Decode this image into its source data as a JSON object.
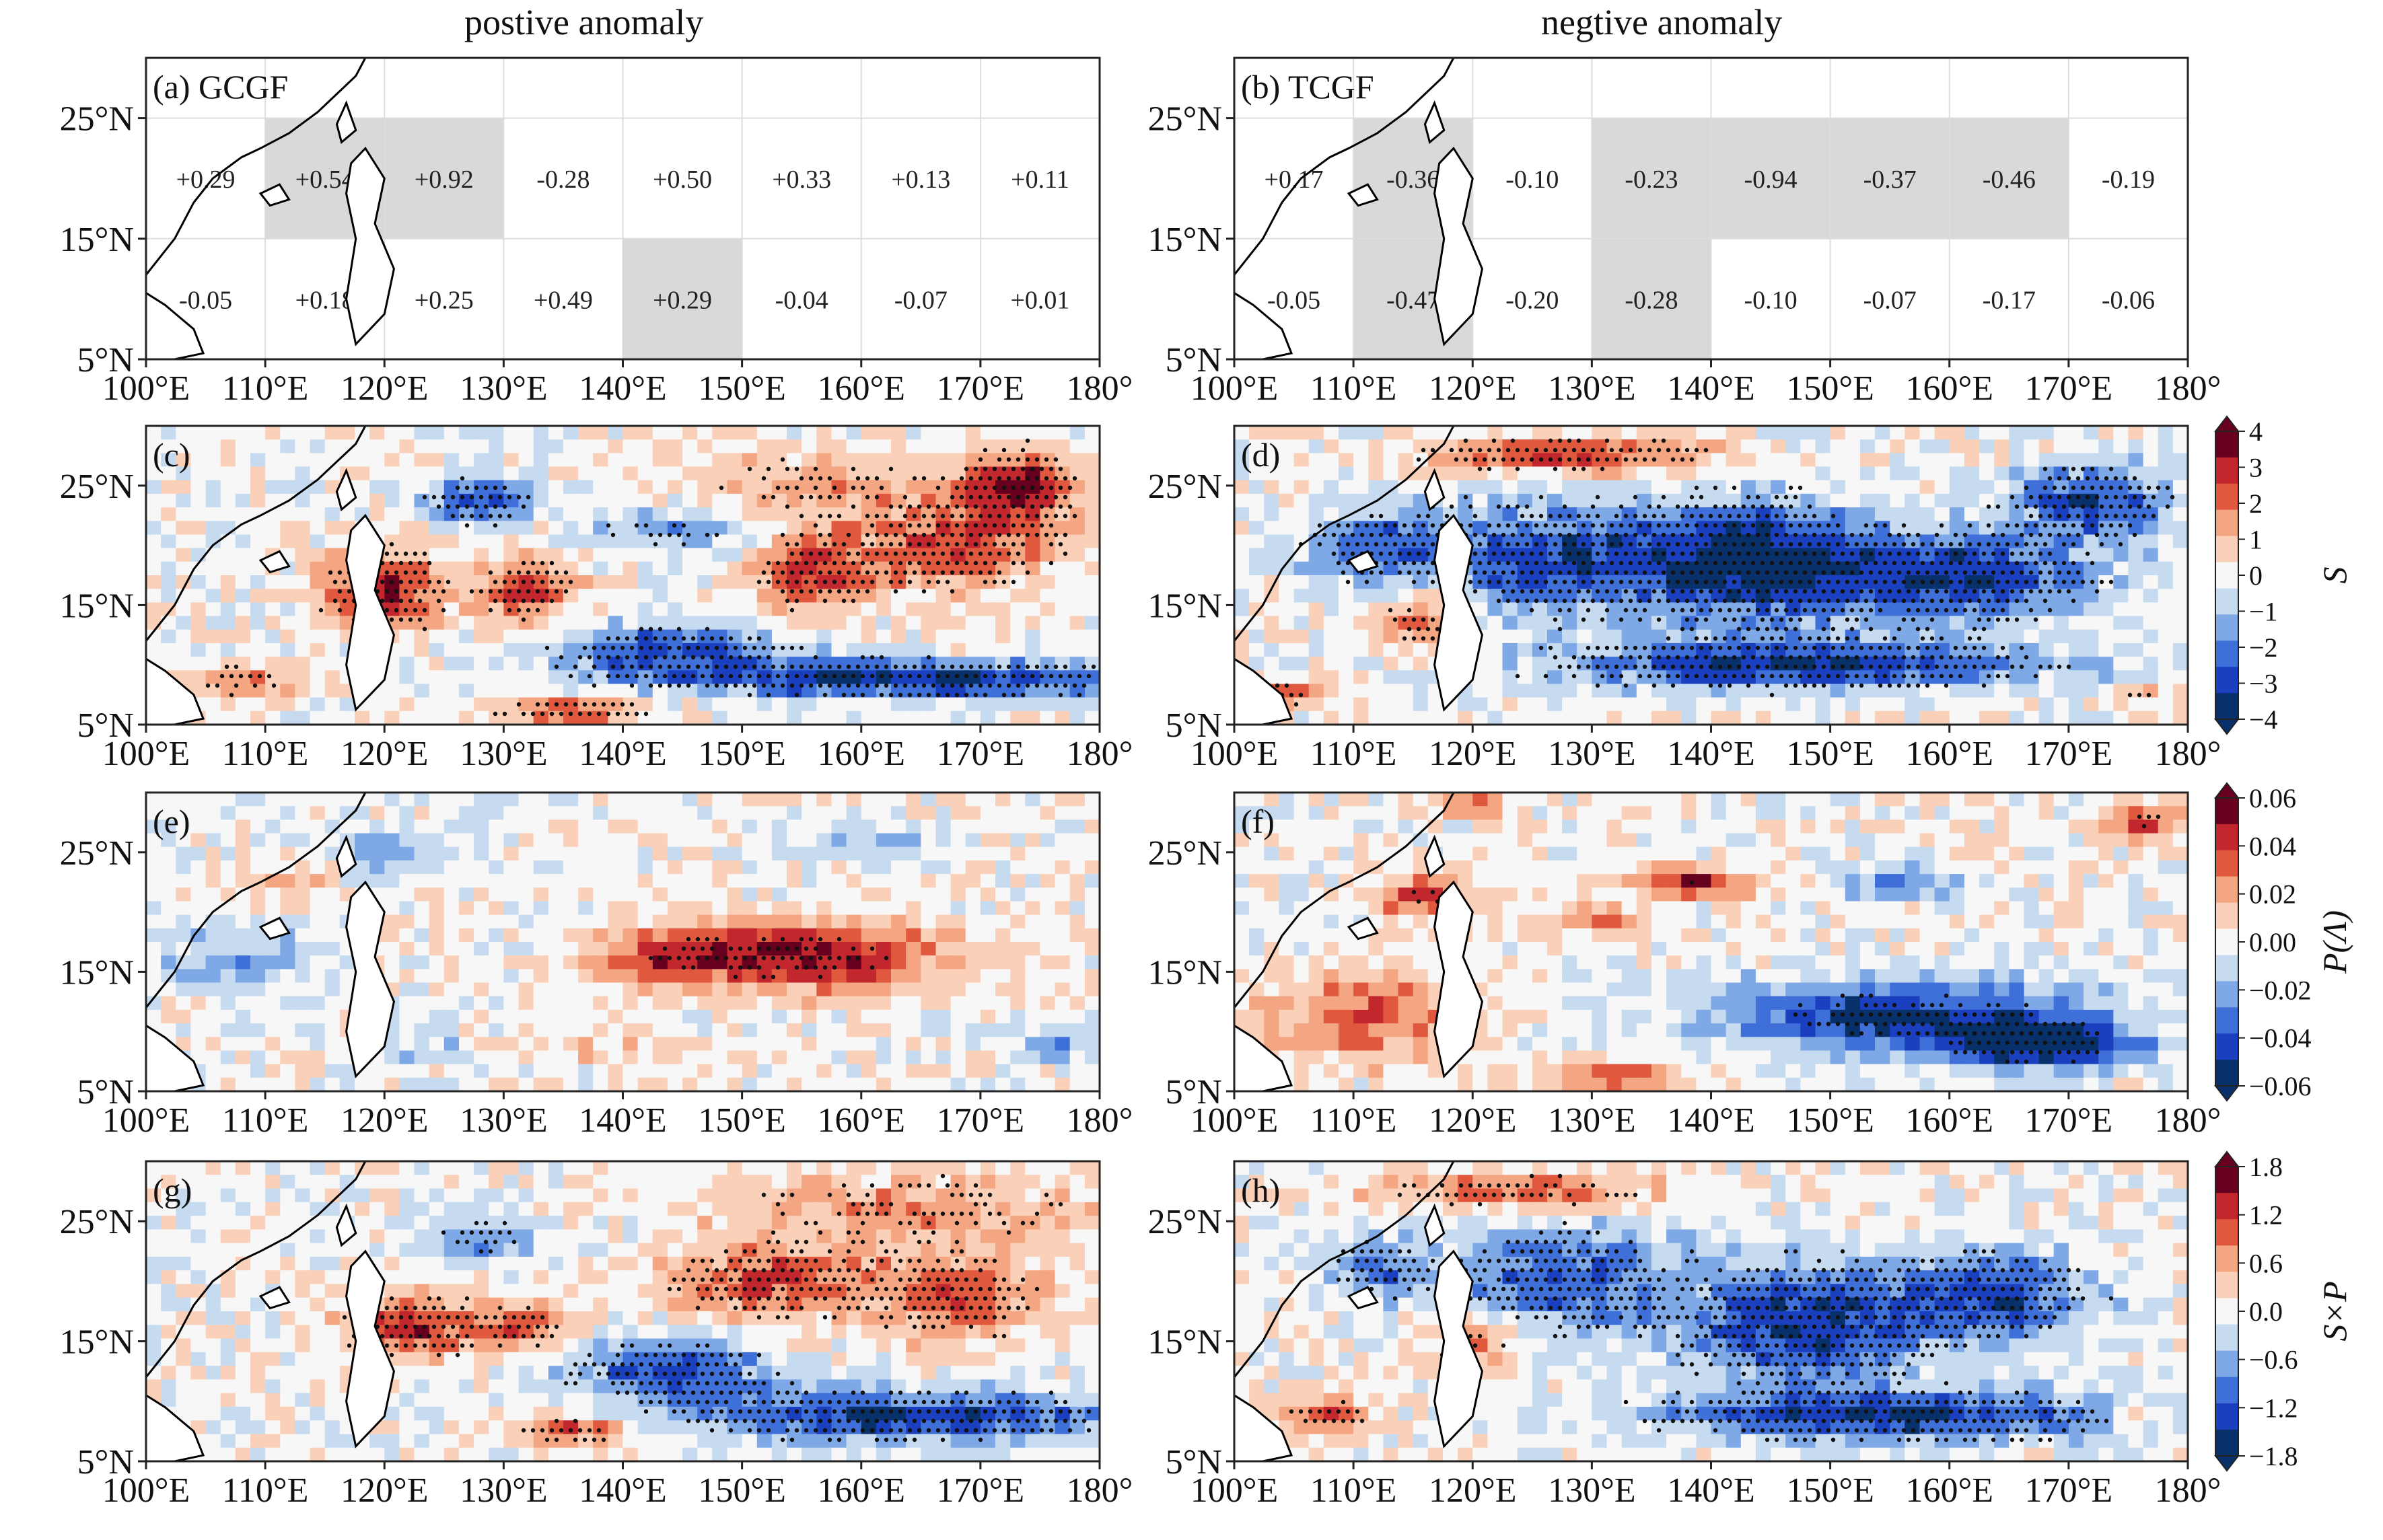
{
  "columns": [
    "postive anomaly",
    "negtive anomaly"
  ],
  "x_ticks": [
    "100°E",
    "110°E",
    "120°E",
    "130°E",
    "140°E",
    "150°E",
    "160°E",
    "170°E",
    "180°"
  ],
  "colors": {
    "deep_red": "#67001f",
    "red": "#d6301f",
    "light_red": "#f4a582",
    "white": "#f7f7f7",
    "light_blue": "#92c5de",
    "blue": "#2140c0",
    "deep_blue": "#08306b",
    "shade_gray": "#d9d9d9",
    "land_outline": "#000000"
  },
  "chart_data": [
    {
      "panel": "(a) GCGF",
      "type": "table",
      "lat_ticks": [
        "25°N",
        "15°N",
        "5°N"
      ],
      "rows": [
        {
          "lat_band": "15°N–25°N",
          "values": [
            "+0.29",
            "+0.54",
            "+0.92",
            "-0.28",
            "+0.50",
            "+0.33",
            "+0.13",
            "+0.11"
          ],
          "shaded": [
            false,
            true,
            true,
            false,
            false,
            false,
            false,
            false
          ]
        },
        {
          "lat_band": "5°N–15°N",
          "values": [
            "-0.05",
            "+0.18",
            "+0.25",
            "+0.49",
            "+0.29",
            "-0.04",
            "-0.07",
            "+0.01"
          ],
          "shaded": [
            false,
            false,
            false,
            false,
            true,
            false,
            false,
            false
          ]
        }
      ]
    },
    {
      "panel": "(b) TCGF",
      "type": "table",
      "lat_ticks": [
        "25°N",
        "15°N",
        "5°N"
      ],
      "rows": [
        {
          "lat_band": "15°N–25°N",
          "values": [
            "+0.17",
            "-0.36",
            "-0.10",
            "-0.23",
            "-0.94",
            "-0.37",
            "-0.46",
            "-0.19"
          ],
          "shaded": [
            false,
            true,
            false,
            true,
            true,
            true,
            true,
            false
          ]
        },
        {
          "lat_band": "5°N–15°N",
          "values": [
            "-0.05",
            "-0.47",
            "-0.20",
            "-0.28",
            "-0.10",
            "-0.07",
            "-0.17",
            "-0.06"
          ],
          "shaded": [
            false,
            true,
            false,
            true,
            false,
            false,
            false,
            false
          ]
        }
      ]
    },
    {
      "panel": "(c)",
      "type": "heatmap",
      "lat_ticks": [
        "25°N",
        "15°N",
        "5°N"
      ]
    },
    {
      "panel": "(d)",
      "type": "heatmap",
      "lat_ticks": [
        "25°N",
        "15°N",
        "5°N"
      ]
    },
    {
      "panel": "(e)",
      "type": "heatmap",
      "lat_ticks": [
        "25°N",
        "15°N",
        "5°N"
      ]
    },
    {
      "panel": "(f)",
      "type": "heatmap",
      "lat_ticks": [
        "25°N",
        "15°N",
        "5°N"
      ]
    },
    {
      "panel": "(g)",
      "type": "heatmap",
      "lat_ticks": [
        "25°N",
        "15°N",
        "5°N"
      ]
    },
    {
      "panel": "(h)",
      "type": "heatmap",
      "lat_ticks": [
        "25°N",
        "15°N",
        "5°N"
      ]
    }
  ],
  "colorbars": [
    {
      "label": "S",
      "ticks": [
        "4",
        "3",
        "2",
        "1",
        "0",
        "−1",
        "−2",
        "−3",
        "−4"
      ]
    },
    {
      "label": "P(Λ)",
      "ticks": [
        "0.06",
        "0.04",
        "0.02",
        "0.00",
        "−0.02",
        "−0.04",
        "−0.06"
      ]
    },
    {
      "label": "S×P",
      "ticks": [
        "1.8",
        "1.2",
        "0.6",
        "0.0",
        "−0.6",
        "−1.2",
        "−1.8"
      ]
    }
  ]
}
